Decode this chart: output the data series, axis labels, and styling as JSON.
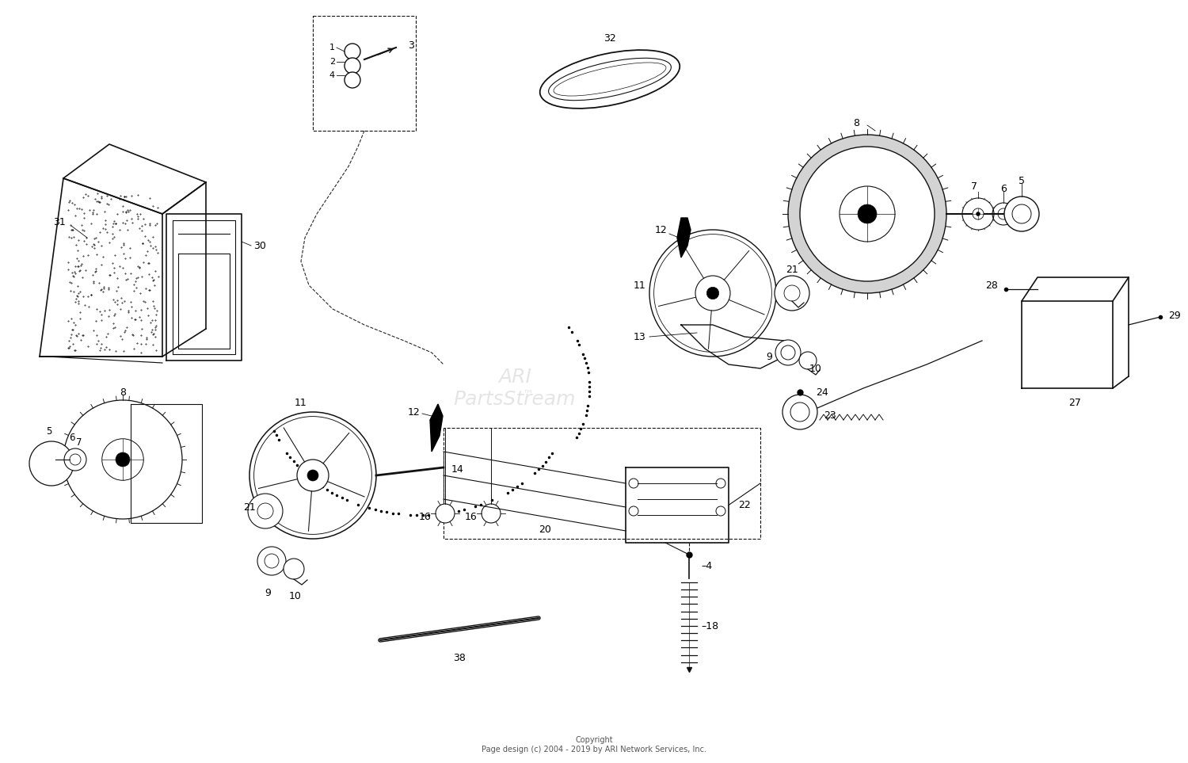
{
  "background_color": "#ffffff",
  "line_color": "#111111",
  "copyright_text": "Copyright\nPage design (c) 2004 - 2019 by ARI Network Services, Inc.",
  "fig_w": 15.0,
  "fig_h": 9.63,
  "dpi": 100
}
